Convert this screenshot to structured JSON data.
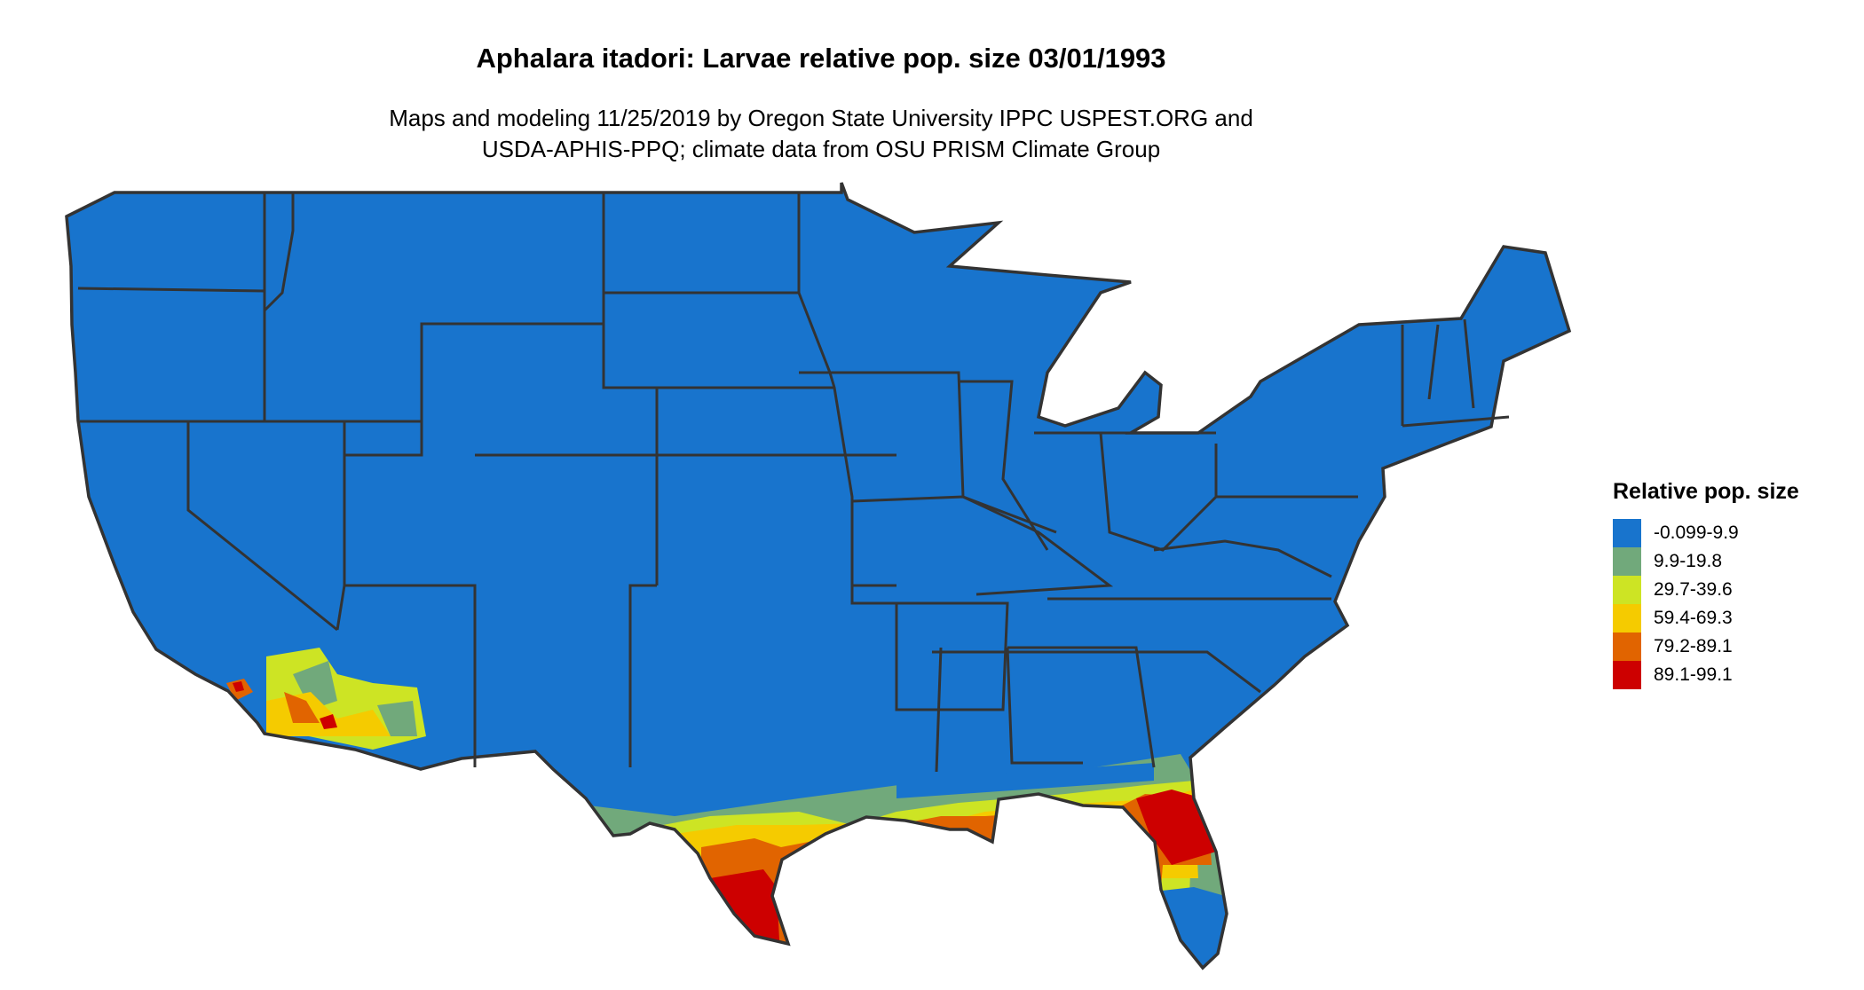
{
  "title": "Aphalara itadori: Larvae relative pop. size 03/01/1993",
  "subtitle_line1": "Maps and modeling 11/25/2019 by Oregon State University IPPC USPEST.ORG and",
  "subtitle_line2": "USDA-APHIS-PPQ; climate data from OSU PRISM Climate Group",
  "legend": {
    "title": "Relative pop. size",
    "items": [
      {
        "label": "-0.099-9.9",
        "color": "#1874CD"
      },
      {
        "label": "9.9-19.8",
        "color": "#71A97B"
      },
      {
        "label": "29.7-39.6",
        "color": "#CDE424"
      },
      {
        "label": "59.4-69.3",
        "color": "#F5CB00"
      },
      {
        "label": "79.2-89.1",
        "color": "#E16400"
      },
      {
        "label": "89.1-99.1",
        "color": "#CD0000"
      }
    ]
  },
  "map": {
    "region": "Contiguous United States",
    "border_color": "#333333"
  }
}
